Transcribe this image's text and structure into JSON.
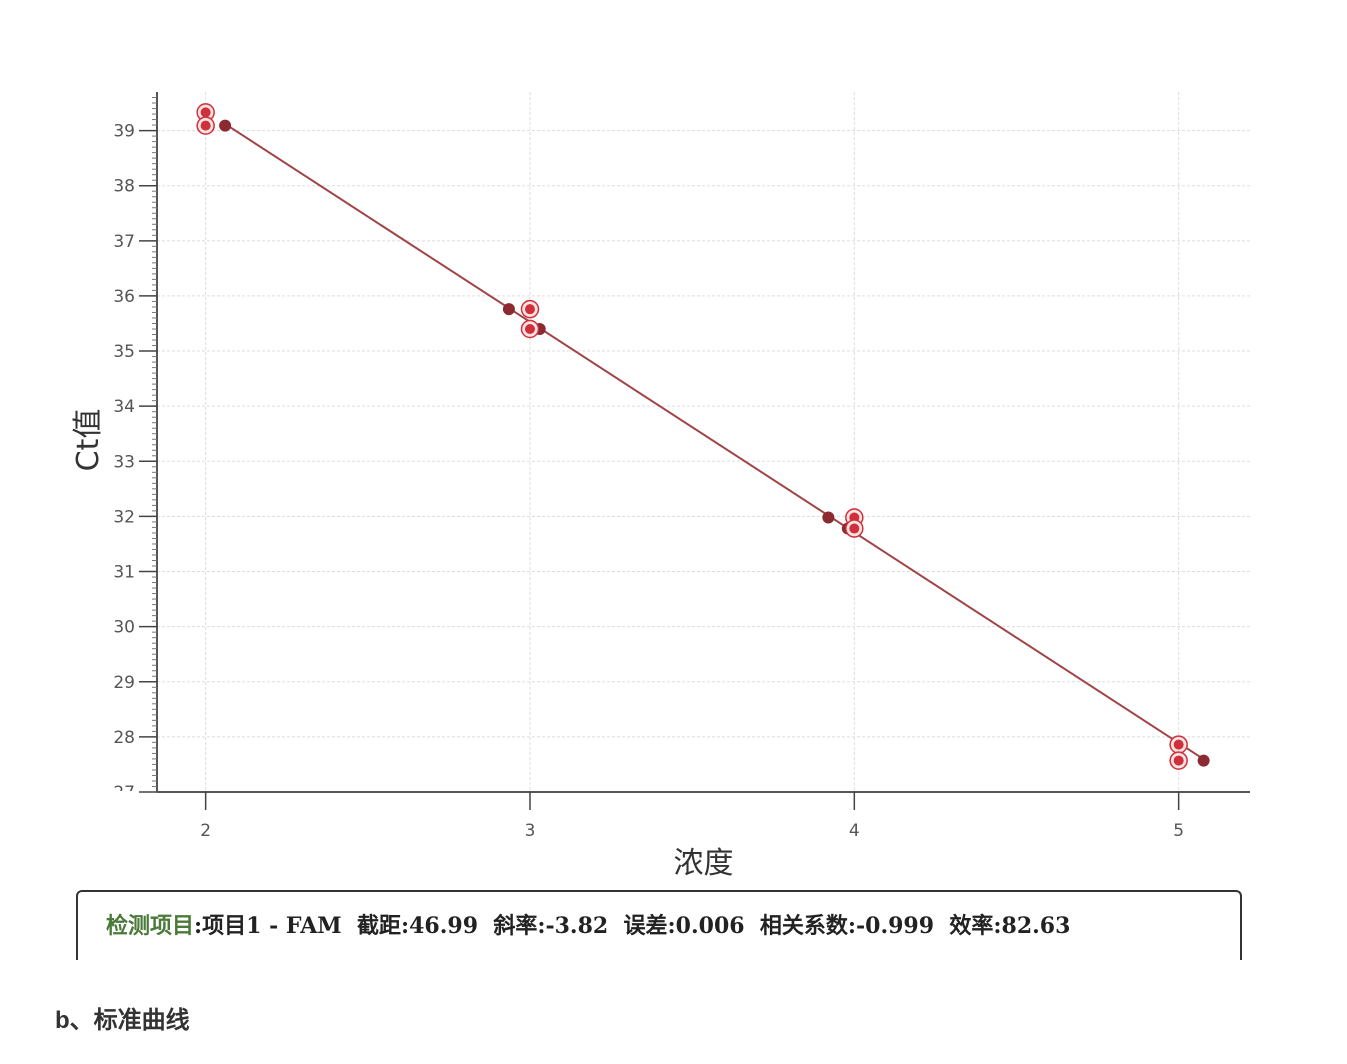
{
  "chart_data": {
    "type": "scatter",
    "xlabel": "浓度",
    "ylabel": "Ct值",
    "xlim": [
      1.85,
      5.22
    ],
    "ylim": [
      27,
      39.7
    ],
    "xticks": [
      2,
      3,
      4,
      5
    ],
    "yticks": [
      27,
      28,
      29,
      30,
      31,
      32,
      33,
      34,
      35,
      36,
      37,
      38,
      39
    ],
    "grid": true,
    "series": [
      {
        "marker": "ringed",
        "color": "#d0303a",
        "points": [
          [
            2,
            39.33
          ],
          [
            2,
            39.09
          ],
          [
            3,
            35.76
          ],
          [
            3,
            35.4
          ],
          [
            4,
            31.98
          ],
          [
            4,
            31.78
          ],
          [
            5,
            27.86
          ],
          [
            5,
            27.57
          ]
        ]
      },
      {
        "marker": "filled",
        "color": "#8b2a30",
        "points": [
          [
            2.06,
            39.09
          ],
          [
            2.935,
            35.76
          ],
          [
            3.03,
            35.4
          ],
          [
            3.92,
            31.98
          ],
          [
            3.98,
            31.78
          ],
          [
            5.077,
            27.57
          ]
        ]
      }
    ],
    "fit_line": {
      "intercept": 46.99,
      "slope": -3.82,
      "x_range": [
        2.06,
        5.077
      ],
      "color": "#a04448"
    }
  },
  "info": {
    "item_label": "检测项目",
    "item_value": ":项目1 - FAM",
    "intercept_label": "截距",
    "intercept_value": ":46.99",
    "slope_label": "斜率",
    "slope_value": ":-3.82",
    "error_label": "误差",
    "error_value": ":0.006",
    "corr_label": "相关系数",
    "corr_value": ":-0.999",
    "eff_label": "效率",
    "eff_value": ":82.63",
    "label_color": "#2e6b3a"
  },
  "caption": "b、标准曲线"
}
